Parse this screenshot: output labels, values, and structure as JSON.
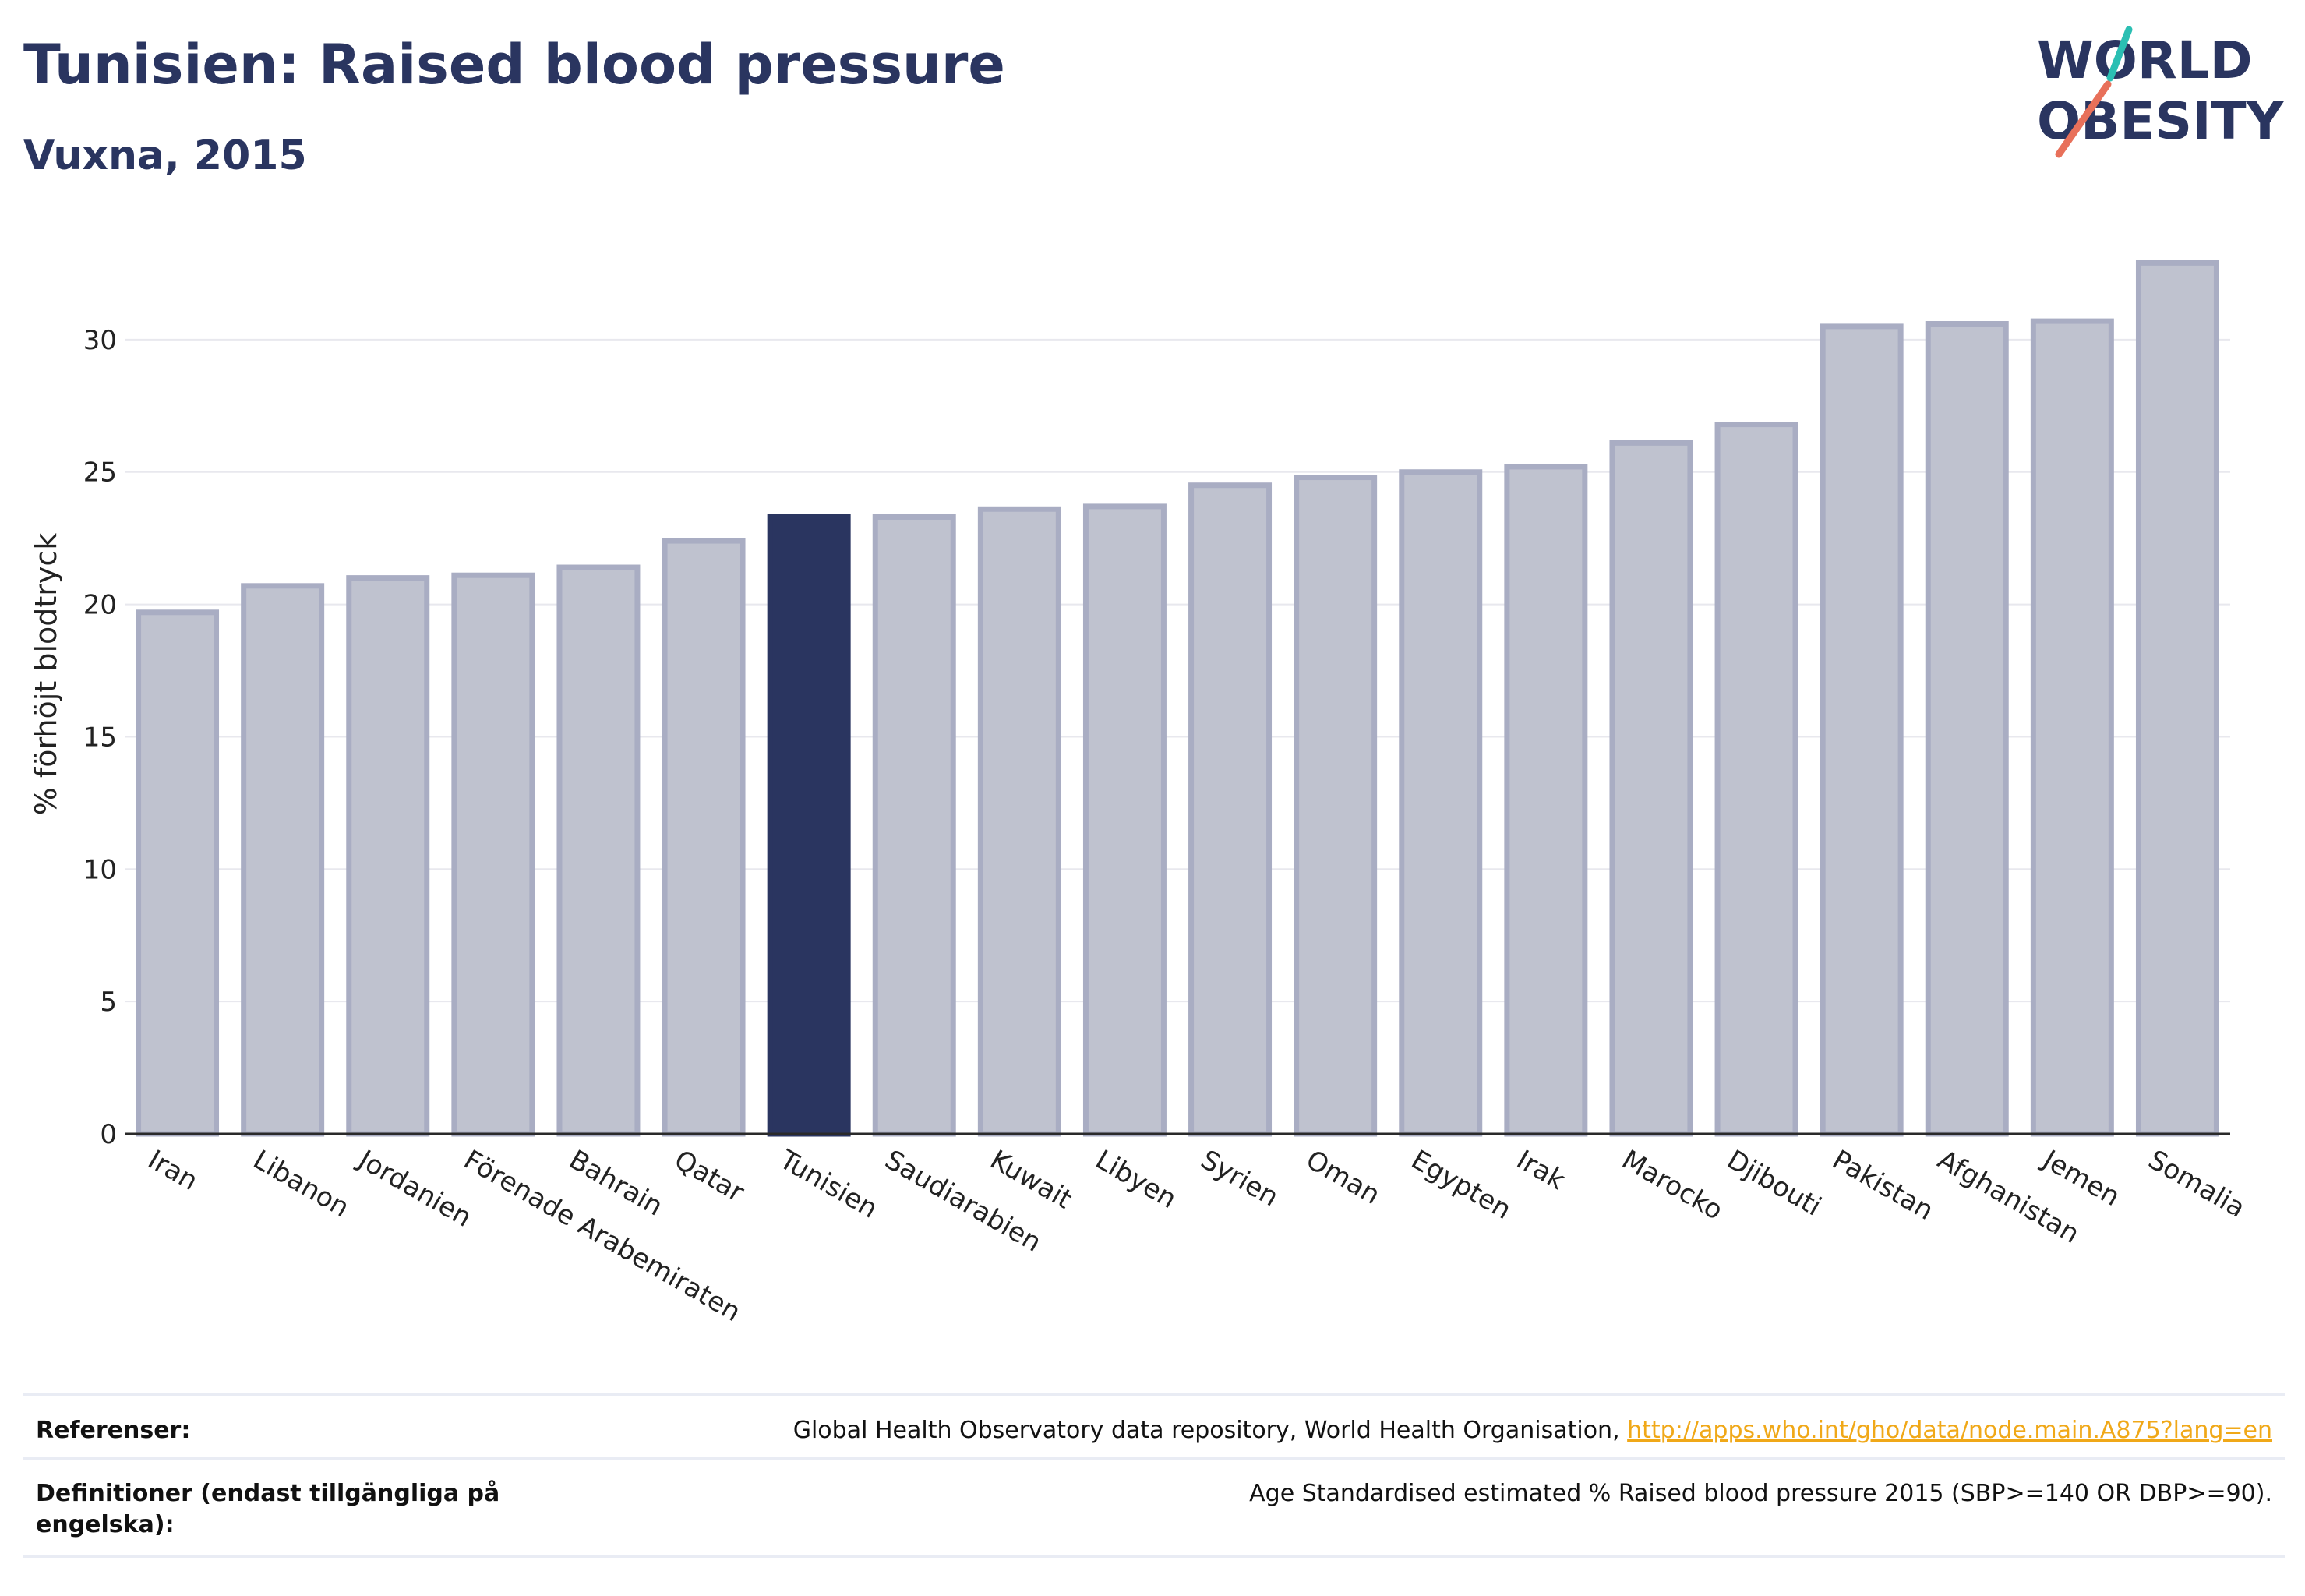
{
  "header": {
    "title": "Tunisien: Raised blood pressure",
    "subtitle": "Vuxna, 2015"
  },
  "logo": {
    "line1": "WORLD",
    "line2": "OBESITY",
    "colors": {
      "text": "#2a3560",
      "slash_top": "#2bbfb3",
      "slash_bottom": "#e8705a"
    }
  },
  "chart_data": {
    "type": "bar",
    "categories": [
      "Iran",
      "Libanon",
      "Jordanien",
      "Förenade Arabemiraten",
      "Bahrain",
      "Qatar",
      "Tunisien",
      "Saudiarabien",
      "Kuwait",
      "Libyen",
      "Syrien",
      "Oman",
      "Egypten",
      "Irak",
      "Marocko",
      "Djibouti",
      "Pakistan",
      "Afghanistan",
      "Jemen",
      "Somalia"
    ],
    "values": [
      19.7,
      20.7,
      21.0,
      21.1,
      21.4,
      22.4,
      23.3,
      23.3,
      23.6,
      23.7,
      24.5,
      24.8,
      25.0,
      25.2,
      26.1,
      26.8,
      30.5,
      30.6,
      30.7,
      32.9
    ],
    "highlight": "Tunisien",
    "ylabel": "% förhöjt blodtryck",
    "xlabel": "",
    "ylim": [
      0,
      34
    ],
    "yticks": [
      0,
      5,
      10,
      15,
      20,
      25,
      30
    ],
    "grid": true,
    "colors": {
      "bar": "#bfc2cf",
      "bar_edge": "#a9adc3",
      "highlight": "#2a3560",
      "grid": "#e8e8ee",
      "axis": "#2a2a2a"
    }
  },
  "footer": {
    "references_label": "Referenser:",
    "references_text": "Global Health Observatory data repository, World Health Organisation, ",
    "references_link": "http://apps.who.int/gho/data/node.main.A875?lang=en",
    "definitions_label": "Definitioner (endast tillgängliga på engelska):",
    "definitions_text": "Age Standardised estimated % Raised blood pressure 2015 (SBP>=140 OR DBP>=90)."
  }
}
